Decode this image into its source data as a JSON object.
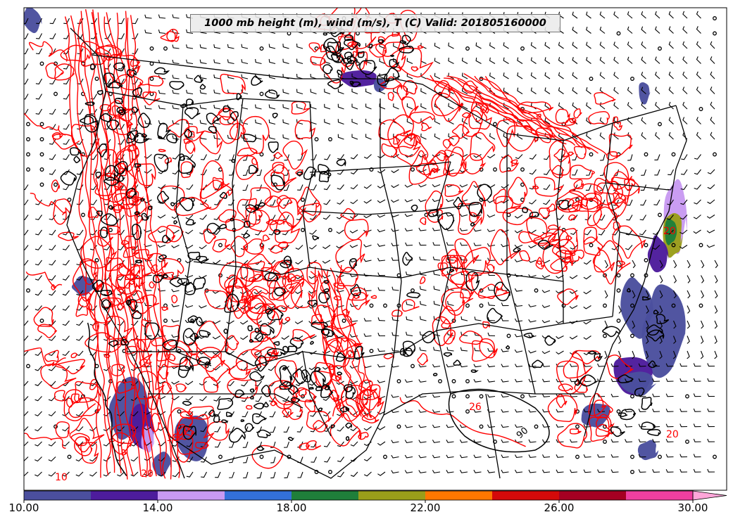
{
  "title": "1000 mb height (m), wind (m/s), T (C) Valid: 201805160000",
  "colorbar": {
    "colors": [
      "#4b4f9e",
      "#4d1c9c",
      "#c89af2",
      "#3370d9",
      "#1f7f3a",
      "#9a9e1a",
      "#ff7700",
      "#d40a0a",
      "#a50022",
      "#ee3fa0",
      "#ffa6d9"
    ],
    "tick_labels": [
      "10.00",
      "14.00",
      "18.00",
      "22.00",
      "26.00",
      "30.00"
    ],
    "tick_values": [
      10,
      14,
      18,
      22,
      26,
      30
    ],
    "range": [
      10,
      31
    ],
    "extend": "max"
  },
  "contour_labels": {
    "temperature_color": "#ff0000",
    "height_color": "#000000",
    "temperature_labels": [
      "10",
      "18",
      "20",
      "20",
      "20",
      "26"
    ],
    "height_labels": [
      "90"
    ]
  },
  "legend_colors": {
    "map_lines": "#000000",
    "wind_barbs": "#000000"
  }
}
